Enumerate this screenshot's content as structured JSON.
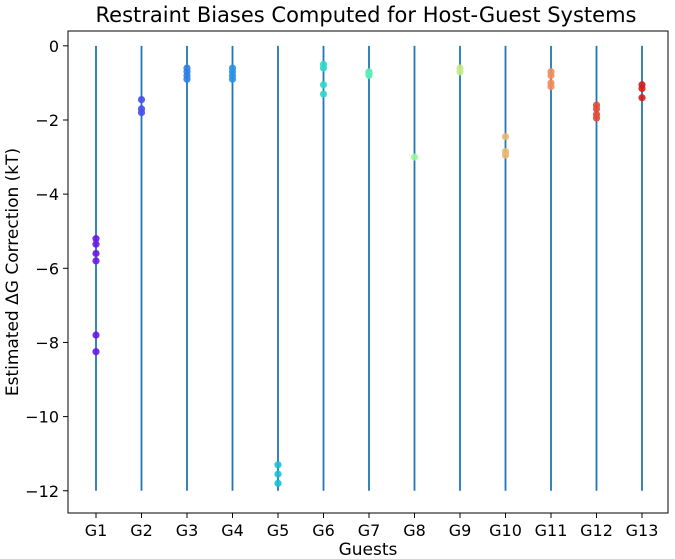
{
  "chart_data": {
    "type": "scatter",
    "title": "Restraint Biases Computed for Host-Guest Systems",
    "xlabel": "Guests",
    "ylabel": "Estimated ΔG Correction (kT)",
    "categories": [
      "G1",
      "G2",
      "G3",
      "G4",
      "G5",
      "G6",
      "G7",
      "G8",
      "G9",
      "G10",
      "G11",
      "G12",
      "G13"
    ],
    "ylim": [
      -12.6,
      0.4
    ],
    "yticks": [
      0,
      -2,
      -4,
      -6,
      -8,
      -10,
      -12
    ],
    "ytick_labels": [
      "0",
      "−2",
      "−4",
      "−6",
      "−8",
      "−10",
      "−12"
    ],
    "vlines": {
      "ymin": -12,
      "ymax": 0,
      "color": "#1f77b4"
    },
    "grid": false,
    "legend": "none",
    "series": [
      {
        "category": "G1",
        "color": "#6a17e8",
        "values": [
          -5.2,
          -5.35,
          -5.6,
          -5.8,
          -7.8,
          -8.25
        ]
      },
      {
        "category": "G2",
        "color": "#4a4df0",
        "values": [
          -1.45,
          -1.7,
          -1.8
        ]
      },
      {
        "category": "G3",
        "color": "#2f7fe8",
        "values": [
          -0.6,
          -0.7,
          -0.8,
          -0.9
        ]
      },
      {
        "category": "G4",
        "color": "#2a92e4",
        "values": [
          -0.6,
          -0.7,
          -0.8,
          -0.9
        ]
      },
      {
        "category": "G5",
        "color": "#18c0d8",
        "values": [
          -11.3,
          -11.55,
          -11.8
        ]
      },
      {
        "category": "G6",
        "color": "#2ed8c8",
        "values": [
          -0.5,
          -0.6,
          -1.05,
          -1.3
        ]
      },
      {
        "category": "G7",
        "color": "#5cecb2",
        "values": [
          -0.7,
          -0.75,
          -0.8
        ]
      },
      {
        "category": "G8",
        "color": "#9af69a",
        "values": [
          -3.0
        ]
      },
      {
        "category": "G9",
        "color": "#c8ea84",
        "values": [
          -0.6,
          -0.7
        ]
      },
      {
        "category": "G10",
        "color": "#e8b873",
        "values": [
          -2.45,
          -2.85,
          -2.95
        ]
      },
      {
        "category": "G11",
        "color": "#f08d5a",
        "values": [
          -0.7,
          -0.8,
          -1.0,
          -1.1
        ]
      },
      {
        "category": "G12",
        "color": "#e24a36",
        "values": [
          -1.6,
          -1.7,
          -1.85,
          -1.95
        ]
      },
      {
        "category": "G13",
        "color": "#d41e1e",
        "values": [
          -1.05,
          -1.15,
          -1.4
        ]
      }
    ]
  }
}
